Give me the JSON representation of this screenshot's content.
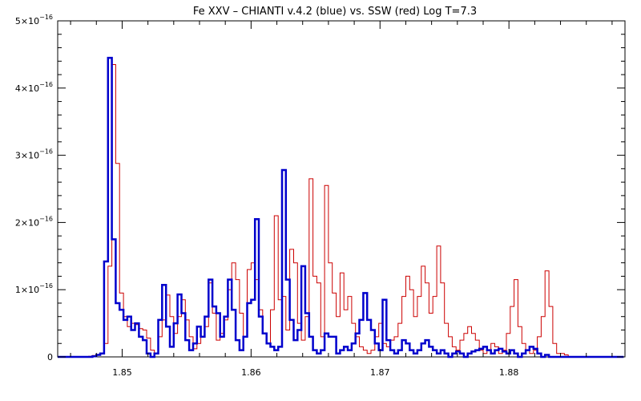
{
  "chart_data": {
    "type": "line",
    "title": "Fe XXV – CHIANTI v.4.2 (blue) vs. SSW (red) Log T=7.3",
    "xlabel": "",
    "ylabel": "",
    "xlim": [
      1.845,
      1.889
    ],
    "ylim": [
      0,
      5e-16
    ],
    "x_ticks": [
      1.85,
      1.86,
      1.87,
      1.88
    ],
    "x_tick_labels": [
      "1.85",
      "1.86",
      "1.87",
      "1.88"
    ],
    "y_ticks": [
      0,
      1e-16,
      2e-16,
      3e-16,
      4e-16,
      5e-16
    ],
    "y_tick_labels": [
      {
        "mantissa": "0",
        "base": "",
        "exponent": ""
      },
      {
        "mantissa": "1",
        "base": "×10",
        "exponent": "−16"
      },
      {
        "mantissa": "2",
        "base": "×10",
        "exponent": "−16"
      },
      {
        "mantissa": "3",
        "base": "×10",
        "exponent": "−16"
      },
      {
        "mantissa": "4",
        "base": "×10",
        "exponent": "−16"
      },
      {
        "mantissa": "5",
        "base": "×10",
        "exponent": "−16"
      }
    ],
    "bin_width": 0.0003,
    "series": [
      {
        "color": "#cc0000",
        "line_width": 1,
        "step": true,
        "points": [
          [
            1.845,
            0
          ],
          [
            1.8468,
            0.005
          ],
          [
            1.8474,
            0.01
          ],
          [
            1.8477,
            0.02
          ],
          [
            1.848,
            0.03
          ],
          [
            1.8483,
            0.05
          ],
          [
            1.8486,
            0.2
          ],
          [
            1.8489,
            1.35
          ],
          [
            1.8492,
            4.35
          ],
          [
            1.8495,
            2.88
          ],
          [
            1.8498,
            0.95
          ],
          [
            1.8501,
            0.6
          ],
          [
            1.8504,
            0.45
          ],
          [
            1.8507,
            0.5
          ],
          [
            1.851,
            0.48
          ],
          [
            1.8513,
            0.42
          ],
          [
            1.8516,
            0.4
          ],
          [
            1.8519,
            0.28
          ],
          [
            1.8522,
            0.1
          ],
          [
            1.8525,
            0.05
          ],
          [
            1.8528,
            0.3
          ],
          [
            1.8531,
            0.55
          ],
          [
            1.8534,
            0.92
          ],
          [
            1.8537,
            0.6
          ],
          [
            1.854,
            0.35
          ],
          [
            1.8543,
            0.6
          ],
          [
            1.8546,
            0.85
          ],
          [
            1.8549,
            0.55
          ],
          [
            1.8552,
            0.3
          ],
          [
            1.8555,
            0.12
          ],
          [
            1.8558,
            0.2
          ],
          [
            1.8561,
            0.3
          ],
          [
            1.8564,
            0.45
          ],
          [
            1.8567,
            1.1
          ],
          [
            1.857,
            0.65
          ],
          [
            1.8573,
            0.25
          ],
          [
            1.8576,
            0.35
          ],
          [
            1.8579,
            0.55
          ],
          [
            1.8582,
            1.0
          ],
          [
            1.8585,
            1.4
          ],
          [
            1.8588,
            1.15
          ],
          [
            1.8591,
            0.65
          ],
          [
            1.8594,
            0.3
          ],
          [
            1.8597,
            1.3
          ],
          [
            1.86,
            1.4
          ],
          [
            1.8603,
            1.15
          ],
          [
            1.8606,
            0.7
          ],
          [
            1.8609,
            0.35
          ],
          [
            1.8612,
            0.2
          ],
          [
            1.8615,
            0.7
          ],
          [
            1.8618,
            2.1
          ],
          [
            1.8621,
            0.85
          ],
          [
            1.8624,
            0.9
          ],
          [
            1.8627,
            0.4
          ],
          [
            1.863,
            1.6
          ],
          [
            1.8633,
            1.4
          ],
          [
            1.8636,
            0.5
          ],
          [
            1.8639,
            0.25
          ],
          [
            1.8642,
            0.6
          ],
          [
            1.8645,
            2.65
          ],
          [
            1.8648,
            1.2
          ],
          [
            1.8651,
            1.1
          ],
          [
            1.8654,
            0.3
          ],
          [
            1.8657,
            2.55
          ],
          [
            1.866,
            1.4
          ],
          [
            1.8663,
            0.95
          ],
          [
            1.8666,
            0.6
          ],
          [
            1.8669,
            1.25
          ],
          [
            1.8672,
            0.7
          ],
          [
            1.8675,
            0.9
          ],
          [
            1.8678,
            0.5
          ],
          [
            1.8681,
            0.3
          ],
          [
            1.8684,
            0.15
          ],
          [
            1.8687,
            0.1
          ],
          [
            1.869,
            0.05
          ],
          [
            1.8693,
            0.1
          ],
          [
            1.8696,
            0.3
          ],
          [
            1.8699,
            0.5
          ],
          [
            1.8702,
            0.2
          ],
          [
            1.8705,
            0.15
          ],
          [
            1.8708,
            0.25
          ],
          [
            1.8711,
            0.3
          ],
          [
            1.8714,
            0.5
          ],
          [
            1.8717,
            0.9
          ],
          [
            1.872,
            1.2
          ],
          [
            1.8723,
            1.0
          ],
          [
            1.8726,
            0.6
          ],
          [
            1.8729,
            0.9
          ],
          [
            1.8732,
            1.35
          ],
          [
            1.8735,
            1.1
          ],
          [
            1.8738,
            0.65
          ],
          [
            1.8741,
            0.9
          ],
          [
            1.8744,
            1.65
          ],
          [
            1.8747,
            1.1
          ],
          [
            1.875,
            0.5
          ],
          [
            1.8753,
            0.3
          ],
          [
            1.8756,
            0.15
          ],
          [
            1.8759,
            0.1
          ],
          [
            1.8762,
            0.25
          ],
          [
            1.8765,
            0.35
          ],
          [
            1.8768,
            0.45
          ],
          [
            1.8771,
            0.35
          ],
          [
            1.8774,
            0.25
          ],
          [
            1.8777,
            0.1
          ],
          [
            1.878,
            0.05
          ],
          [
            1.8783,
            0.1
          ],
          [
            1.8786,
            0.2
          ],
          [
            1.8789,
            0.15
          ],
          [
            1.8792,
            0.05
          ],
          [
            1.8795,
            0.1
          ],
          [
            1.8798,
            0.35
          ],
          [
            1.8801,
            0.75
          ],
          [
            1.8804,
            1.15
          ],
          [
            1.8807,
            0.45
          ],
          [
            1.881,
            0.2
          ],
          [
            1.8813,
            0.1
          ],
          [
            1.8816,
            0.05
          ],
          [
            1.8819,
            0.1
          ],
          [
            1.8822,
            0.3
          ],
          [
            1.8825,
            0.6
          ],
          [
            1.8828,
            1.28
          ],
          [
            1.8831,
            0.75
          ],
          [
            1.8834,
            0.2
          ],
          [
            1.8837,
            0.05
          ],
          [
            1.884,
            0.05
          ],
          [
            1.8843,
            0.03
          ],
          [
            1.8846,
            0
          ],
          [
            1.8889,
            0
          ]
        ]
      },
      {
        "color": "#0000cc",
        "line_width": 2.5,
        "step": true,
        "points": [
          [
            1.845,
            0
          ],
          [
            1.8477,
            0.01
          ],
          [
            1.848,
            0.03
          ],
          [
            1.8483,
            0.05
          ],
          [
            1.8486,
            1.42
          ],
          [
            1.8489,
            4.45
          ],
          [
            1.8492,
            1.75
          ],
          [
            1.8495,
            0.8
          ],
          [
            1.8498,
            0.7
          ],
          [
            1.8501,
            0.55
          ],
          [
            1.8504,
            0.6
          ],
          [
            1.8507,
            0.4
          ],
          [
            1.851,
            0.5
          ],
          [
            1.8513,
            0.3
          ],
          [
            1.8516,
            0.25
          ],
          [
            1.8519,
            0.05
          ],
          [
            1.8522,
            0.0
          ],
          [
            1.8525,
            0.05
          ],
          [
            1.8528,
            0.55
          ],
          [
            1.8531,
            1.07
          ],
          [
            1.8534,
            0.45
          ],
          [
            1.8537,
            0.15
          ],
          [
            1.854,
            0.5
          ],
          [
            1.8543,
            0.93
          ],
          [
            1.8546,
            0.65
          ],
          [
            1.8549,
            0.25
          ],
          [
            1.8552,
            0.1
          ],
          [
            1.8555,
            0.2
          ],
          [
            1.8558,
            0.45
          ],
          [
            1.8561,
            0.3
          ],
          [
            1.8564,
            0.6
          ],
          [
            1.8567,
            1.15
          ],
          [
            1.857,
            0.75
          ],
          [
            1.8573,
            0.65
          ],
          [
            1.8576,
            0.3
          ],
          [
            1.8579,
            0.6
          ],
          [
            1.8582,
            1.15
          ],
          [
            1.8585,
            0.7
          ],
          [
            1.8588,
            0.25
          ],
          [
            1.8591,
            0.1
          ],
          [
            1.8594,
            0.3
          ],
          [
            1.8597,
            0.8
          ],
          [
            1.86,
            0.85
          ],
          [
            1.8603,
            2.05
          ],
          [
            1.8606,
            0.6
          ],
          [
            1.8609,
            0.35
          ],
          [
            1.8612,
            0.2
          ],
          [
            1.8615,
            0.15
          ],
          [
            1.8618,
            0.1
          ],
          [
            1.8621,
            0.15
          ],
          [
            1.8624,
            2.78
          ],
          [
            1.8627,
            1.15
          ],
          [
            1.863,
            0.55
          ],
          [
            1.8633,
            0.25
          ],
          [
            1.8636,
            0.4
          ],
          [
            1.8639,
            1.35
          ],
          [
            1.8642,
            0.65
          ],
          [
            1.8645,
            0.3
          ],
          [
            1.8648,
            0.1
          ],
          [
            1.8651,
            0.05
          ],
          [
            1.8654,
            0.1
          ],
          [
            1.8657,
            0.35
          ],
          [
            1.866,
            0.3
          ],
          [
            1.8663,
            0.3
          ],
          [
            1.8666,
            0.05
          ],
          [
            1.8669,
            0.1
          ],
          [
            1.8672,
            0.15
          ],
          [
            1.8675,
            0.1
          ],
          [
            1.8678,
            0.2
          ],
          [
            1.8681,
            0.35
          ],
          [
            1.8684,
            0.55
          ],
          [
            1.8687,
            0.95
          ],
          [
            1.869,
            0.55
          ],
          [
            1.8693,
            0.4
          ],
          [
            1.8696,
            0.2
          ],
          [
            1.8699,
            0.1
          ],
          [
            1.8702,
            0.85
          ],
          [
            1.8705,
            0.25
          ],
          [
            1.8708,
            0.1
          ],
          [
            1.8711,
            0.05
          ],
          [
            1.8714,
            0.1
          ],
          [
            1.8717,
            0.25
          ],
          [
            1.872,
            0.2
          ],
          [
            1.8723,
            0.1
          ],
          [
            1.8726,
            0.05
          ],
          [
            1.8729,
            0.1
          ],
          [
            1.8732,
            0.2
          ],
          [
            1.8735,
            0.25
          ],
          [
            1.8738,
            0.15
          ],
          [
            1.8741,
            0.1
          ],
          [
            1.8744,
            0.05
          ],
          [
            1.8747,
            0.1
          ],
          [
            1.875,
            0.05
          ],
          [
            1.8753,
            0.0
          ],
          [
            1.8756,
            0.05
          ],
          [
            1.8759,
            0.08
          ],
          [
            1.8762,
            0.05
          ],
          [
            1.8765,
            0.0
          ],
          [
            1.8768,
            0.05
          ],
          [
            1.8771,
            0.08
          ],
          [
            1.8774,
            0.1
          ],
          [
            1.8777,
            0.12
          ],
          [
            1.878,
            0.15
          ],
          [
            1.8783,
            0.1
          ],
          [
            1.8786,
            0.05
          ],
          [
            1.8789,
            0.1
          ],
          [
            1.8792,
            0.12
          ],
          [
            1.8795,
            0.08
          ],
          [
            1.8798,
            0.05
          ],
          [
            1.8801,
            0.1
          ],
          [
            1.8804,
            0.05
          ],
          [
            1.8807,
            0.0
          ],
          [
            1.881,
            0.05
          ],
          [
            1.8813,
            0.1
          ],
          [
            1.8816,
            0.15
          ],
          [
            1.8819,
            0.12
          ],
          [
            1.8822,
            0.05
          ],
          [
            1.8825,
            0.0
          ],
          [
            1.8828,
            0.03
          ],
          [
            1.8831,
            0.0
          ],
          [
            1.8889,
            0
          ]
        ]
      }
    ]
  }
}
